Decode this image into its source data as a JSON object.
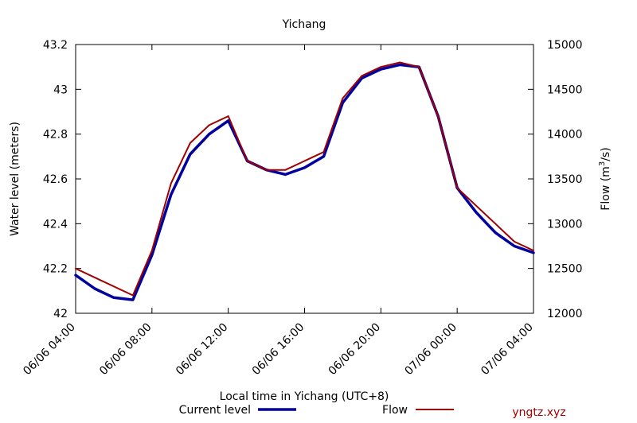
{
  "chart_data": {
    "type": "line",
    "title": "Yichang",
    "xlabel": "Local time in Yichang (UTC+8)",
    "ylabel_left": "Water level (meters)",
    "ylabel_right_prefix": "Flow (m",
    "ylabel_right_sup": "3",
    "ylabel_right_suffix": "/s)",
    "x_tick_labels": [
      "06/06 04:00",
      "06/06 08:00",
      "06/06 12:00",
      "06/06 16:00",
      "06/06 20:00",
      "07/06 00:00",
      "07/06 04:00"
    ],
    "x_hours_from_first_tick": [
      0,
      4,
      8,
      12,
      16,
      20,
      24
    ],
    "xlim_hours": [
      0,
      24
    ],
    "y_left_ticks": [
      "42",
      "42.2",
      "42.4",
      "42.6",
      "42.8",
      "43",
      "43.2"
    ],
    "y_left_lim": [
      42,
      43.2
    ],
    "y_right_ticks": [
      "12000",
      "12500",
      "13000",
      "13500",
      "14000",
      "14500",
      "15000"
    ],
    "y_right_lim": [
      12000,
      15000
    ],
    "grid": false,
    "legend_position": "bottom",
    "series": [
      {
        "name": "Current level",
        "axis": "left",
        "color": "#0000a0",
        "x": [
          0,
          1,
          2,
          3,
          4,
          5,
          6,
          7,
          8,
          9,
          10,
          11,
          12,
          13,
          14,
          15,
          16,
          17,
          18,
          19,
          20,
          21,
          22,
          23,
          24
        ],
        "values": [
          42.17,
          42.11,
          42.07,
          42.06,
          42.26,
          42.53,
          42.71,
          42.8,
          42.86,
          42.68,
          42.64,
          42.62,
          42.65,
          42.7,
          42.94,
          43.05,
          43.09,
          43.11,
          43.1,
          42.88,
          42.56,
          42.45,
          42.36,
          42.3,
          42.27
        ]
      },
      {
        "name": "Flow",
        "axis": "right",
        "color": "#a00000",
        "x": [
          0,
          3,
          4,
          5,
          6,
          7,
          8,
          9,
          10,
          11,
          13,
          14,
          15,
          16,
          17,
          18,
          19,
          20,
          21,
          22,
          23,
          24
        ],
        "values": [
          12500,
          12200,
          12700,
          13450,
          13900,
          14100,
          14200,
          13700,
          13600,
          13600,
          13800,
          14400,
          14650,
          14750,
          14800,
          14750,
          14200,
          13400,
          13200,
          13000,
          12800,
          12700
        ]
      }
    ],
    "watermark": "yngtz.xyz"
  }
}
